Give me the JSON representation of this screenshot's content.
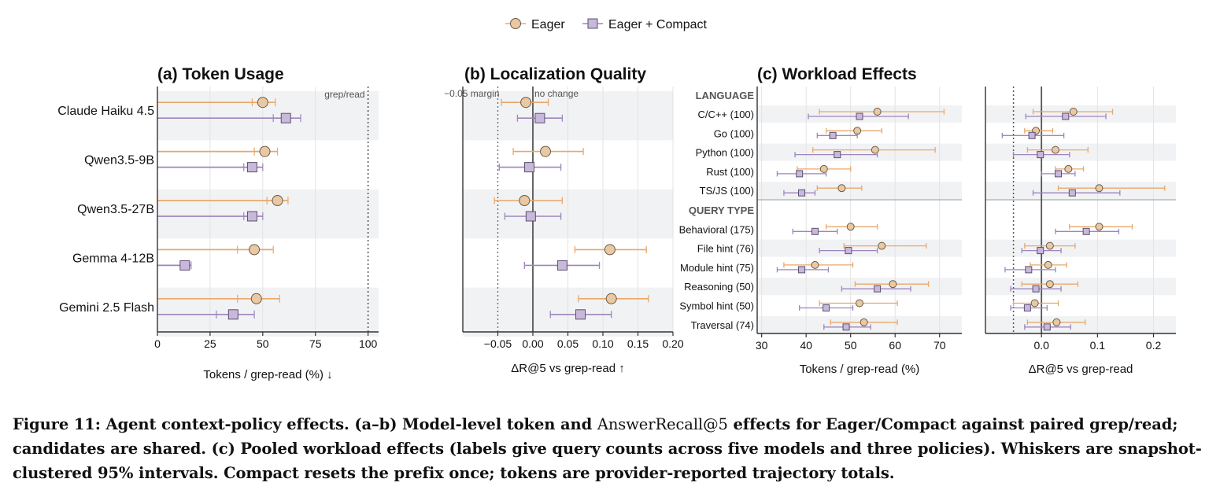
{
  "legend": [
    {
      "name": "Eager",
      "color": "#e8a86a",
      "fill": "#e9c9a4",
      "marker": "circle"
    },
    {
      "name": "Eager + Compact",
      "color": "#9d86bd",
      "fill": "#c8b8da",
      "marker": "square"
    }
  ],
  "caption": {
    "part1": "Figure 11: Agent context-policy effects. (a–b) Model-level token and ",
    "metric": "AnswerRecall@5",
    "part2": " effects for Eager/Compact against paired grep/read; candidates are shared. (c) Pooled workload effects (labels give query counts across five models and three policies). Whiskers are snapshot-clustered 95% intervals. Compact resets the prefix once; tokens are provider-reported trajectory totals."
  },
  "chart_data": [
    {
      "id": "a",
      "type": "scatter",
      "title": "(a) Token Usage",
      "xlabel": "Tokens / grep-read (%)  ↓",
      "xlim": [
        0,
        105
      ],
      "xticks": [
        0,
        25,
        50,
        75,
        100
      ],
      "xtick_labels": [
        "0",
        "25",
        "50",
        "75",
        "100"
      ],
      "reference_line": {
        "x": 100,
        "label": "grep/read"
      },
      "categories": [
        "Claude Haiku 4.5",
        "Qwen3.5-9B",
        "Qwen3.5-27B",
        "Gemma 4-12B",
        "Gemini 2.5 Flash"
      ],
      "series": [
        {
          "name": "Eager",
          "values": [
            50,
            51,
            57,
            46,
            47
          ],
          "lo": [
            0,
            0,
            0,
            0,
            0
          ],
          "hi": [
            56,
            57,
            62,
            55,
            58
          ],
          "cap_lo": [
            45,
            46,
            52,
            38,
            38
          ]
        },
        {
          "name": "Eager + Compact",
          "values": [
            61,
            45,
            45,
            13,
            36
          ],
          "lo": [
            0,
            0,
            0,
            0,
            0
          ],
          "hi": [
            68,
            50,
            50,
            16,
            46
          ],
          "cap_lo": [
            55,
            41,
            41,
            11,
            28
          ]
        }
      ]
    },
    {
      "id": "b",
      "type": "scatter",
      "title": "(b) Localization Quality",
      "xlabel": "ΔR@5 vs grep-read  ↑",
      "xlim": [
        -0.1,
        0.2
      ],
      "xticks": [
        -0.05,
        0.0,
        0.05,
        0.1,
        0.15,
        0.2
      ],
      "xtick_labels": [
        "−0.05",
        "0.00",
        "0.05",
        "0.10",
        "0.15",
        "0.20"
      ],
      "annotations": [
        "−0.05 margin",
        "no change"
      ],
      "categories": [
        "Claude Haiku 4.5",
        "Qwen3.5-9B",
        "Qwen3.5-27B",
        "Gemma 4-12B",
        "Gemini 2.5 Flash"
      ],
      "series": [
        {
          "name": "Eager",
          "values": [
            -0.01,
            0.018,
            -0.012,
            0.11,
            0.112
          ],
          "lo": [
            -0.045,
            -0.028,
            -0.055,
            0.06,
            0.065
          ],
          "hi": [
            0.022,
            0.072,
            0.042,
            0.162,
            0.165
          ]
        },
        {
          "name": "Eager + Compact",
          "values": [
            0.01,
            -0.005,
            -0.003,
            0.042,
            0.068
          ],
          "lo": [
            -0.022,
            -0.048,
            -0.04,
            -0.012,
            0.025
          ],
          "hi": [
            0.042,
            0.04,
            0.04,
            0.095,
            0.112
          ]
        }
      ]
    },
    {
      "id": "c",
      "type": "scatter",
      "title": "(c) Workload Effects",
      "xlabel": "Tokens / grep-read (%)",
      "xlim": [
        29,
        75
      ],
      "xticks": [
        30,
        40,
        50,
        60,
        70
      ],
      "xtick_labels": [
        "30",
        "40",
        "50",
        "60",
        "70"
      ],
      "groups": [
        {
          "name": "LANGUAGE",
          "categories": [
            "C/C++ (100)",
            "Go (100)",
            "Python (100)",
            "Rust (100)",
            "TS/JS (100)"
          ]
        },
        {
          "name": "QUERY TYPE",
          "categories": [
            "Behavioral (175)",
            "File hint (76)",
            "Module hint (75)",
            "Reasoning (50)",
            "Symbol hint (50)",
            "Traversal (74)"
          ]
        }
      ],
      "series": [
        {
          "name": "Eager",
          "values": [
            56,
            51.5,
            55.5,
            44,
            48,
            50,
            57,
            42,
            59.5,
            52,
            53
          ],
          "lo": [
            43,
            44.5,
            41.5,
            38,
            42.5,
            44.5,
            48.5,
            35,
            51,
            43,
            45.5
          ],
          "hi": [
            71,
            57,
            69,
            50,
            52.5,
            56,
            67,
            50.5,
            67.5,
            60.5,
            60.5
          ]
        },
        {
          "name": "Eager + Compact",
          "values": [
            52,
            46,
            47,
            38.5,
            39,
            42,
            49.5,
            39,
            56,
            44.5,
            49
          ],
          "lo": [
            40.5,
            42.5,
            37.5,
            33.5,
            35,
            37,
            43,
            33.5,
            48,
            38.5,
            44
          ],
          "hi": [
            63,
            51.5,
            56,
            44.5,
            42,
            47,
            56,
            45,
            63.5,
            50.5,
            54.5
          ]
        }
      ]
    },
    {
      "id": "d",
      "type": "scatter",
      "title": "",
      "xlabel": "ΔR@5 vs grep-read",
      "xlim": [
        -0.1,
        0.24
      ],
      "xticks": [
        0.0,
        0.1,
        0.2
      ],
      "xtick_labels": [
        "0.0",
        "0.1",
        "0.2"
      ],
      "reference_line": {
        "x": -0.05
      },
      "series": [
        {
          "name": "Eager",
          "values": [
            0.057,
            -0.01,
            0.025,
            0.048,
            0.103,
            0.103,
            0.015,
            0.012,
            0.015,
            -0.012,
            0.027
          ],
          "lo": [
            -0.015,
            -0.03,
            -0.025,
            0.025,
            0.03,
            0.05,
            -0.03,
            -0.02,
            -0.035,
            -0.05,
            -0.025
          ],
          "hi": [
            0.127,
            0.02,
            0.083,
            0.075,
            0.22,
            0.162,
            0.06,
            0.045,
            0.065,
            0.03,
            0.078
          ]
        },
        {
          "name": "Eager + Compact",
          "values": [
            0.043,
            -0.017,
            -0.002,
            0.03,
            0.055,
            0.08,
            -0.002,
            -0.023,
            -0.01,
            -0.025,
            0.01
          ],
          "lo": [
            -0.028,
            -0.07,
            -0.05,
            0.0,
            -0.015,
            0.025,
            -0.035,
            -0.065,
            -0.055,
            -0.055,
            -0.03
          ],
          "hi": [
            0.115,
            0.04,
            0.05,
            0.06,
            0.14,
            0.138,
            0.035,
            0.025,
            0.035,
            0.01,
            0.052
          ]
        }
      ]
    }
  ]
}
